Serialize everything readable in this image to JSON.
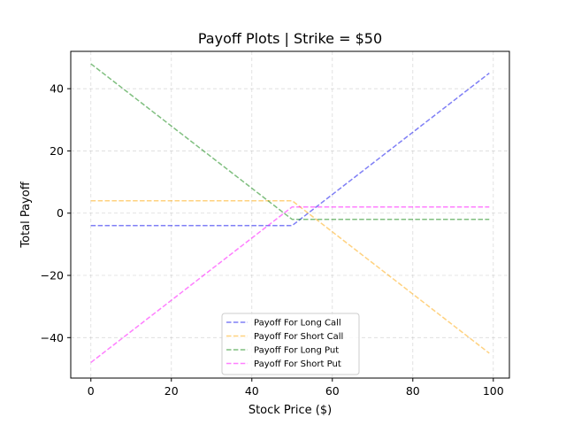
{
  "chart_data": {
    "type": "line",
    "title": "Payoff Plots | Strike = $50",
    "xlabel": "Stock Price ($)",
    "ylabel": "Total Payoff",
    "xlim": [
      -5,
      104
    ],
    "ylim": [
      -53,
      52
    ],
    "xticks": [
      0,
      20,
      40,
      60,
      80,
      100
    ],
    "yticks": [
      -40,
      -20,
      0,
      20,
      40
    ],
    "xtick_labels": [
      "0",
      "20",
      "40",
      "60",
      "80",
      "100"
    ],
    "ytick_labels": [
      "−40",
      "−20",
      "0",
      "20",
      "40"
    ],
    "grid": true,
    "legend_position": "bottom-center",
    "series": [
      {
        "name": "Payoff For Long Call",
        "color": "#0000ee",
        "x": [
          0,
          50,
          99
        ],
        "y": [
          -4,
          -4,
          45
        ]
      },
      {
        "name": "Payoff For Short Call",
        "color": "#ffa500",
        "x": [
          0,
          50,
          99
        ],
        "y": [
          4,
          4,
          -45
        ]
      },
      {
        "name": "Payoff For Long Put",
        "color": "#008000",
        "x": [
          0,
          50,
          99
        ],
        "y": [
          48,
          -2,
          -2
        ]
      },
      {
        "name": "Payoff For Short Put",
        "color": "#ff00ff",
        "x": [
          0,
          50,
          99
        ],
        "y": [
          -48,
          2,
          2
        ]
      }
    ]
  }
}
